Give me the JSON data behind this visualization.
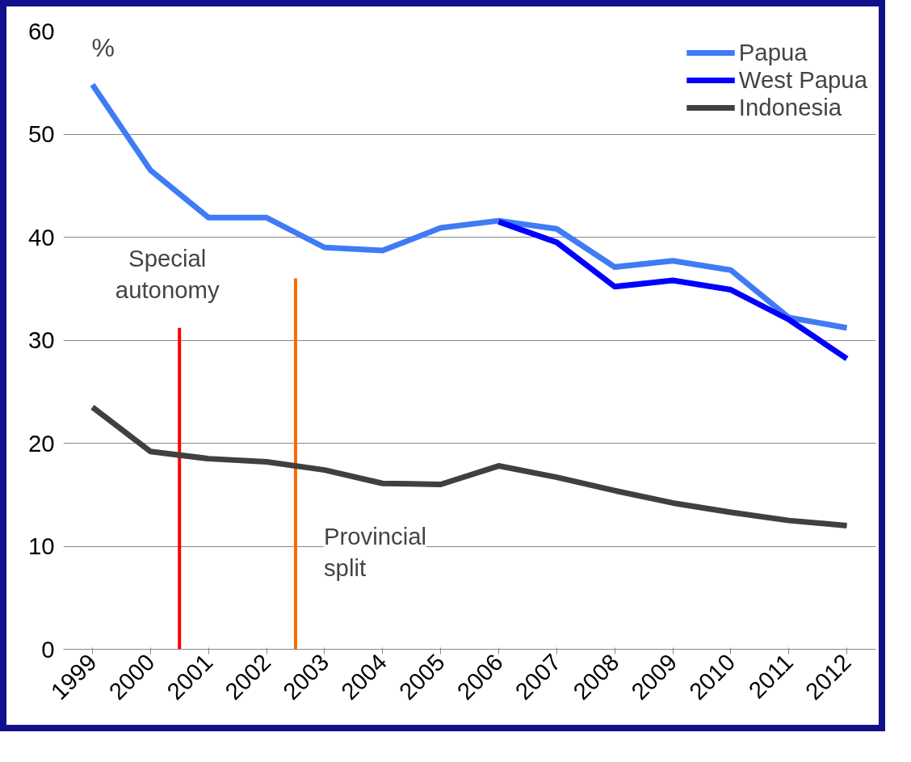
{
  "chart_data": {
    "type": "line",
    "ylabel": "%",
    "x": [
      1999,
      2000,
      2001,
      2002,
      2003,
      2004,
      2005,
      2006,
      2007,
      2008,
      2009,
      2010,
      2011,
      2012
    ],
    "series": [
      {
        "name": "Papua",
        "color": "#3f7bf5",
        "values": [
          54.8,
          46.5,
          41.9,
          41.9,
          39.0,
          38.7,
          40.9,
          41.6,
          40.8,
          37.1,
          37.7,
          36.8,
          32.2,
          31.2
        ]
      },
      {
        "name": "West Papua",
        "color": "#0000ff",
        "values": [
          null,
          null,
          null,
          null,
          null,
          null,
          null,
          41.5,
          39.5,
          35.2,
          35.8,
          34.9,
          32.0,
          28.2
        ]
      },
      {
        "name": "Indonesia",
        "color": "#404040",
        "values": [
          23.5,
          19.2,
          18.5,
          18.2,
          17.4,
          16.1,
          16.0,
          17.8,
          16.7,
          15.4,
          14.2,
          13.3,
          12.5,
          12.0
        ]
      }
    ],
    "xlim": [
      1998.5,
      2012.5
    ],
    "xticks": [
      1999,
      2000,
      2001,
      2002,
      2003,
      2004,
      2005,
      2006,
      2007,
      2008,
      2009,
      2010,
      2011,
      2012
    ],
    "ylim": [
      0,
      60
    ],
    "yticks": [
      0,
      10,
      20,
      30,
      40,
      50,
      60
    ],
    "ref_lines": [
      {
        "axis": "x",
        "value": 2000.5,
        "label": "Special autonomy",
        "color": "#ff0000"
      },
      {
        "axis": "x",
        "value": 2002.5,
        "label": "Provincial split",
        "color": "#ff6600"
      }
    ],
    "grid": "y",
    "legend": "top right",
    "marker": "none",
    "line_style": "solid"
  }
}
